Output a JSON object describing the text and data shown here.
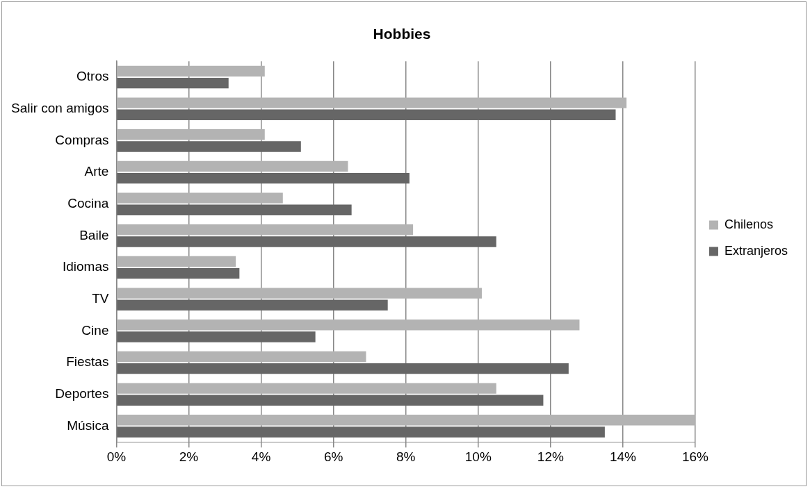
{
  "chart_data": {
    "type": "bar",
    "title": "Hobbies",
    "orientation": "horizontal",
    "categories": [
      "Otros",
      "Salir con amigos",
      "Compras",
      "Arte",
      "Cocina",
      "Baile",
      "Idiomas",
      "TV",
      "Cine",
      "Fiestas",
      "Deportes",
      "Música"
    ],
    "series": [
      {
        "name": "Chilenos",
        "color": "#b3b3b3",
        "values": [
          4.1,
          14.1,
          4.1,
          6.4,
          4.6,
          8.2,
          3.3,
          10.1,
          12.8,
          6.9,
          10.5,
          16.0
        ]
      },
      {
        "name": "Extranjeros",
        "color": "#666666",
        "values": [
          3.1,
          13.8,
          5.1,
          8.1,
          6.5,
          10.5,
          3.4,
          7.5,
          5.5,
          12.5,
          11.8,
          13.5
        ]
      }
    ],
    "xlim": [
      0,
      16
    ],
    "xticks": [
      {
        "value": 0,
        "label": "0%"
      },
      {
        "value": 2,
        "label": "2%"
      },
      {
        "value": 4,
        "label": "4%"
      },
      {
        "value": 6,
        "label": "6%"
      },
      {
        "value": 8,
        "label": "8%"
      },
      {
        "value": 10,
        "label": "10%"
      },
      {
        "value": 12,
        "label": "12%"
      },
      {
        "value": 14,
        "label": "14%"
      },
      {
        "value": 16,
        "label": "16%"
      }
    ],
    "grid": "x",
    "legend": "right"
  }
}
